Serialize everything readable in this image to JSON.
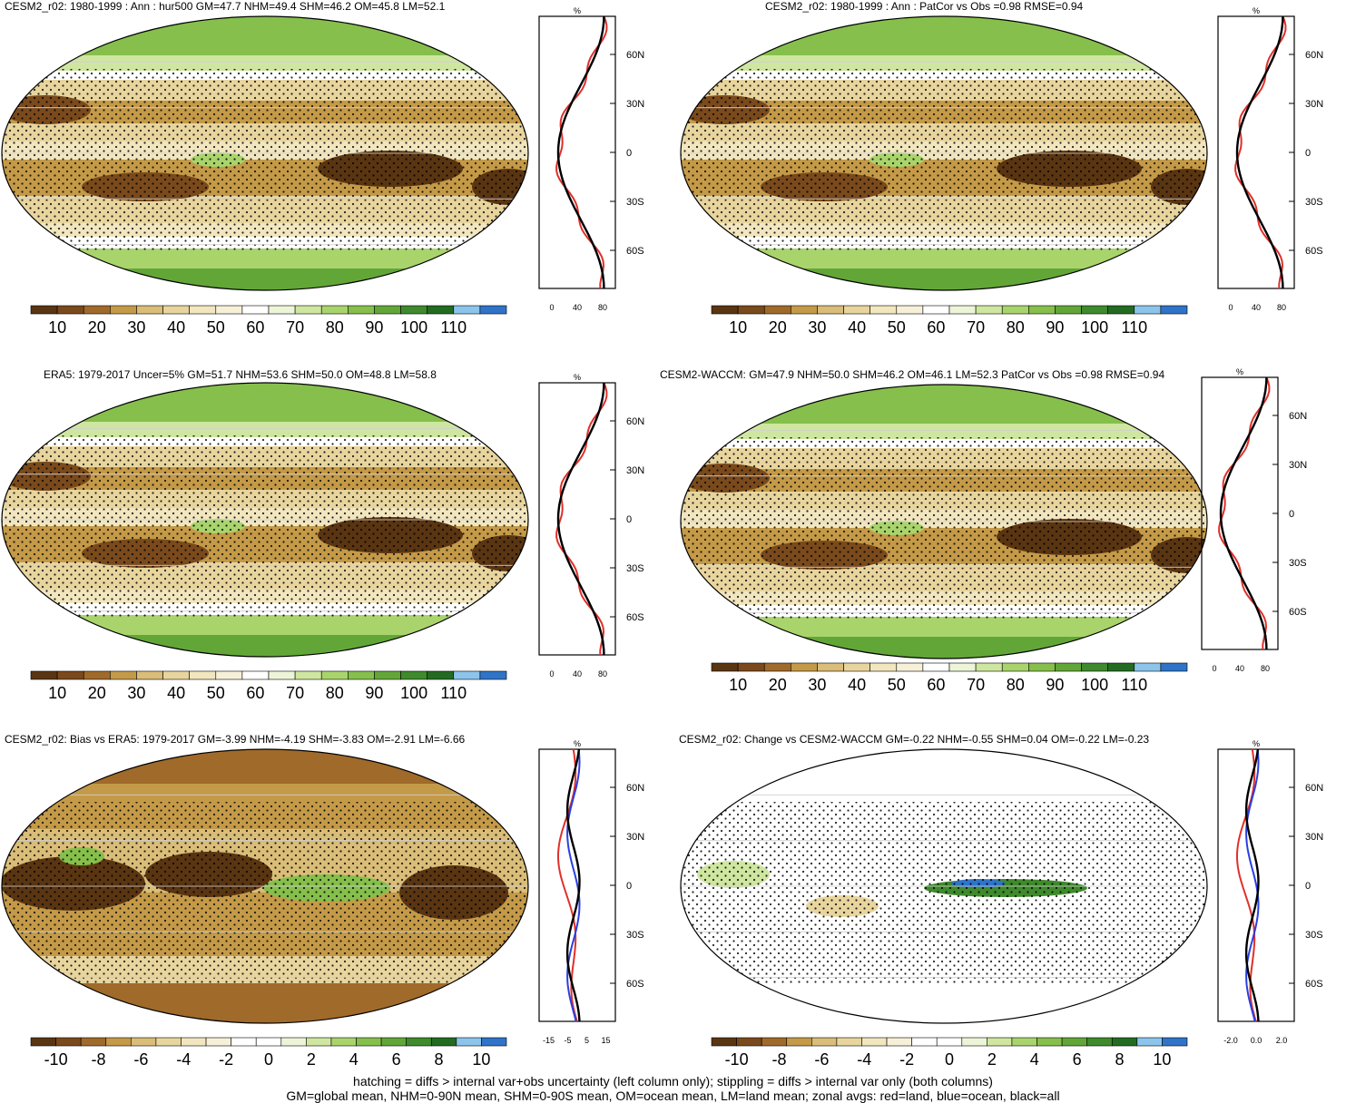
{
  "colors": {
    "sequential_scale": [
      "#5a3512",
      "#7a4a1c",
      "#a06a2a",
      "#c49a48",
      "#d9bd78",
      "#e8d59e",
      "#f2e6bf",
      "#f7f0d8",
      "#ffffff",
      "#edf5d8",
      "#cfe6a0",
      "#a9d46c",
      "#86bf4c",
      "#62a638",
      "#3f8a2c",
      "#246b22",
      "#8cc4ec",
      "#2f74c8"
    ],
    "diverging_scale": [
      "#5a3512",
      "#7a4a1c",
      "#a06a2a",
      "#c49a48",
      "#d9bd78",
      "#e8d59e",
      "#f2e6bf",
      "#f7f0d8",
      "#ffffff",
      "#ffffff",
      "#edf5d8",
      "#cfe6a0",
      "#a9d46c",
      "#86bf4c",
      "#62a638",
      "#3f8a2c",
      "#246b22",
      "#8cc4ec",
      "#2f74c8"
    ],
    "land_line": "#e0302a",
    "ocean_line": "#2a3fe0",
    "all_line": "#000000"
  },
  "panels": [
    {
      "id": "p1",
      "title": "CESM2_r02: 1980-1999 : Ann : hur500 GM=47.7 NHM=49.4 SHM=46.2 OM=45.8 LM=52.1",
      "colorbar_labels": [
        "10",
        "20",
        "30",
        "40",
        "50",
        "60",
        "70",
        "80",
        "90",
        "100",
        "110"
      ],
      "zonal_ticks_x": [
        "0",
        "40",
        "80"
      ],
      "zonal_unit": "%",
      "lat_labels": [
        "60N",
        "30N",
        "0",
        "30S",
        "60S"
      ]
    },
    {
      "id": "p2",
      "title": "CESM2_r02: 1980-1999 : Ann : PatCor vs Obs =0.98 RMSE=0.94",
      "colorbar_labels": [
        "10",
        "20",
        "30",
        "40",
        "50",
        "60",
        "70",
        "80",
        "90",
        "100",
        "110"
      ],
      "zonal_ticks_x": [
        "0",
        "40",
        "80"
      ],
      "zonal_unit": "%",
      "lat_labels": [
        "60N",
        "30N",
        "0",
        "30S",
        "60S"
      ]
    },
    {
      "id": "p3",
      "title": "ERA5: 1979-2017 Uncer=5% GM=51.7 NHM=53.6 SHM=50.0 OM=48.8 LM=58.8",
      "colorbar_labels": [
        "10",
        "20",
        "30",
        "40",
        "50",
        "60",
        "70",
        "80",
        "90",
        "100",
        "110"
      ],
      "zonal_ticks_x": [
        "0",
        "40",
        "80"
      ],
      "zonal_unit": "%",
      "lat_labels": [
        "60N",
        "30N",
        "0",
        "30S",
        "60S"
      ]
    },
    {
      "id": "p4",
      "title": "CESM2-WACCM: GM=47.9 NHM=50.0 SHM=46.2 OM=46.1 LM=52.3 PatCor vs Obs =0.98 RMSE=0.94",
      "colorbar_labels": [
        "10",
        "20",
        "30",
        "40",
        "50",
        "60",
        "70",
        "80",
        "90",
        "100",
        "110"
      ],
      "zonal_ticks_x": [
        "0",
        "40",
        "80"
      ],
      "zonal_unit": "%",
      "lat_labels": [
        "60N",
        "30N",
        "0",
        "30S",
        "60S"
      ]
    },
    {
      "id": "p5",
      "title": "CESM2_r02: Bias vs ERA5: 1979-2017 GM=-3.99 NHM=-4.19 SHM=-3.83 OM=-2.91 LM=-6.66",
      "colorbar_labels": [
        "-10",
        "-8",
        "-6",
        "-4",
        "-2",
        "0",
        "2",
        "4",
        "6",
        "8",
        "10"
      ],
      "zonal_ticks_x": [
        "-15",
        "-5",
        "5",
        "15"
      ],
      "zonal_unit": "%",
      "lat_labels": [
        "60N",
        "30N",
        "0",
        "30S",
        "60S"
      ]
    },
    {
      "id": "p6",
      "title": "CESM2_r02: Change vs CESM2-WACCM GM=-0.22 NHM=-0.55 SHM=0.04 OM=-0.22 LM=-0.23",
      "colorbar_labels": [
        "-10",
        "-8",
        "-6",
        "-4",
        "-2",
        "0",
        "2",
        "4",
        "6",
        "8",
        "10"
      ],
      "zonal_ticks_x": [
        "-2.0",
        "0.0",
        "2.0"
      ],
      "zonal_unit": "%",
      "lat_labels": [
        "60N",
        "30N",
        "0",
        "30S",
        "60S"
      ]
    }
  ],
  "footer": {
    "line1": "hatching = diffs > internal var+obs uncertainty (left column only); stippling = diffs > internal var only (both columns)",
    "line2": "GM=global mean, NHM=0-90N mean, SHM=0-90S mean, OM=ocean mean, LM=land mean; zonal avgs: red=land, blue=ocean, black=all"
  }
}
